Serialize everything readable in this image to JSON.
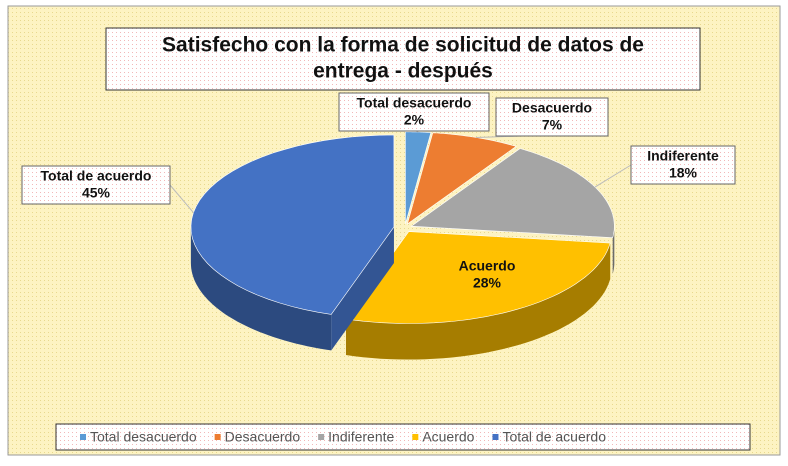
{
  "chart_data": {
    "type": "pie",
    "title": "Satisfecho con la forma de solicitud de datos de entrega - después",
    "categories": [
      "Total desacuerdo",
      "Desacuerdo",
      "Indiferente",
      "Acuerdo",
      "Total de acuerdo"
    ],
    "values": [
      2,
      7,
      18,
      28,
      45
    ],
    "value_labels": [
      "2%",
      "7%",
      "18%",
      "28%",
      "45%"
    ],
    "colors": [
      "#5b9bd5",
      "#ed7d31",
      "#a5a5a5",
      "#ffc000",
      "#4472c4"
    ],
    "legend": "bottom"
  }
}
